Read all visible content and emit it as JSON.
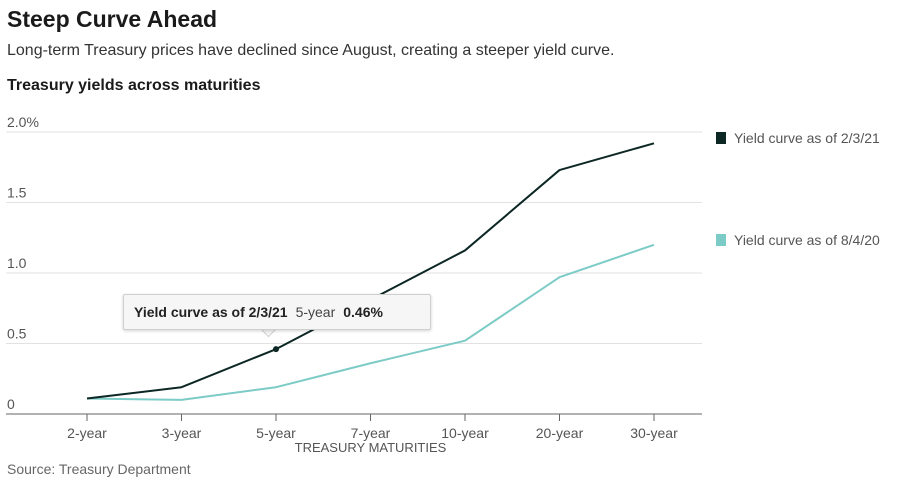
{
  "title": "Steep Curve Ahead",
  "subtitle": "Long-term Treasury prices have declined since August, creating a steeper yield curve.",
  "chart_heading": "Treasury yields across maturities",
  "source": "Source: Treasury Department",
  "tooltip": {
    "series": "Yield curve as of 2/3/21",
    "category": "5-year",
    "value": "0.46%"
  },
  "chart_data": {
    "type": "line",
    "categories": [
      "2-year",
      "3-year",
      "5-year",
      "7-year",
      "10-year",
      "20-year",
      "30-year"
    ],
    "xlabel": "TREASURY MATURITIES",
    "ylabel": "",
    "ylim": [
      0,
      2.0
    ],
    "yticks": [
      0,
      0.5,
      1.0,
      1.5,
      2.0
    ],
    "ytick_labels": [
      "0",
      "0.5",
      "1.0",
      "1.5",
      "2.0%"
    ],
    "grid": true,
    "legend_position": "right",
    "series": [
      {
        "name": "Yield curve as of 2/3/21",
        "color": "#0c2724",
        "values": [
          0.11,
          0.19,
          0.46,
          0.81,
          1.16,
          1.73,
          1.92
        ]
      },
      {
        "name": "Yield curve as of 8/4/20",
        "color": "#7ccbc6",
        "values": [
          0.11,
          0.1,
          0.19,
          0.36,
          0.52,
          0.97,
          1.2
        ]
      }
    ],
    "highlight": {
      "series": 0,
      "category": 2
    }
  }
}
